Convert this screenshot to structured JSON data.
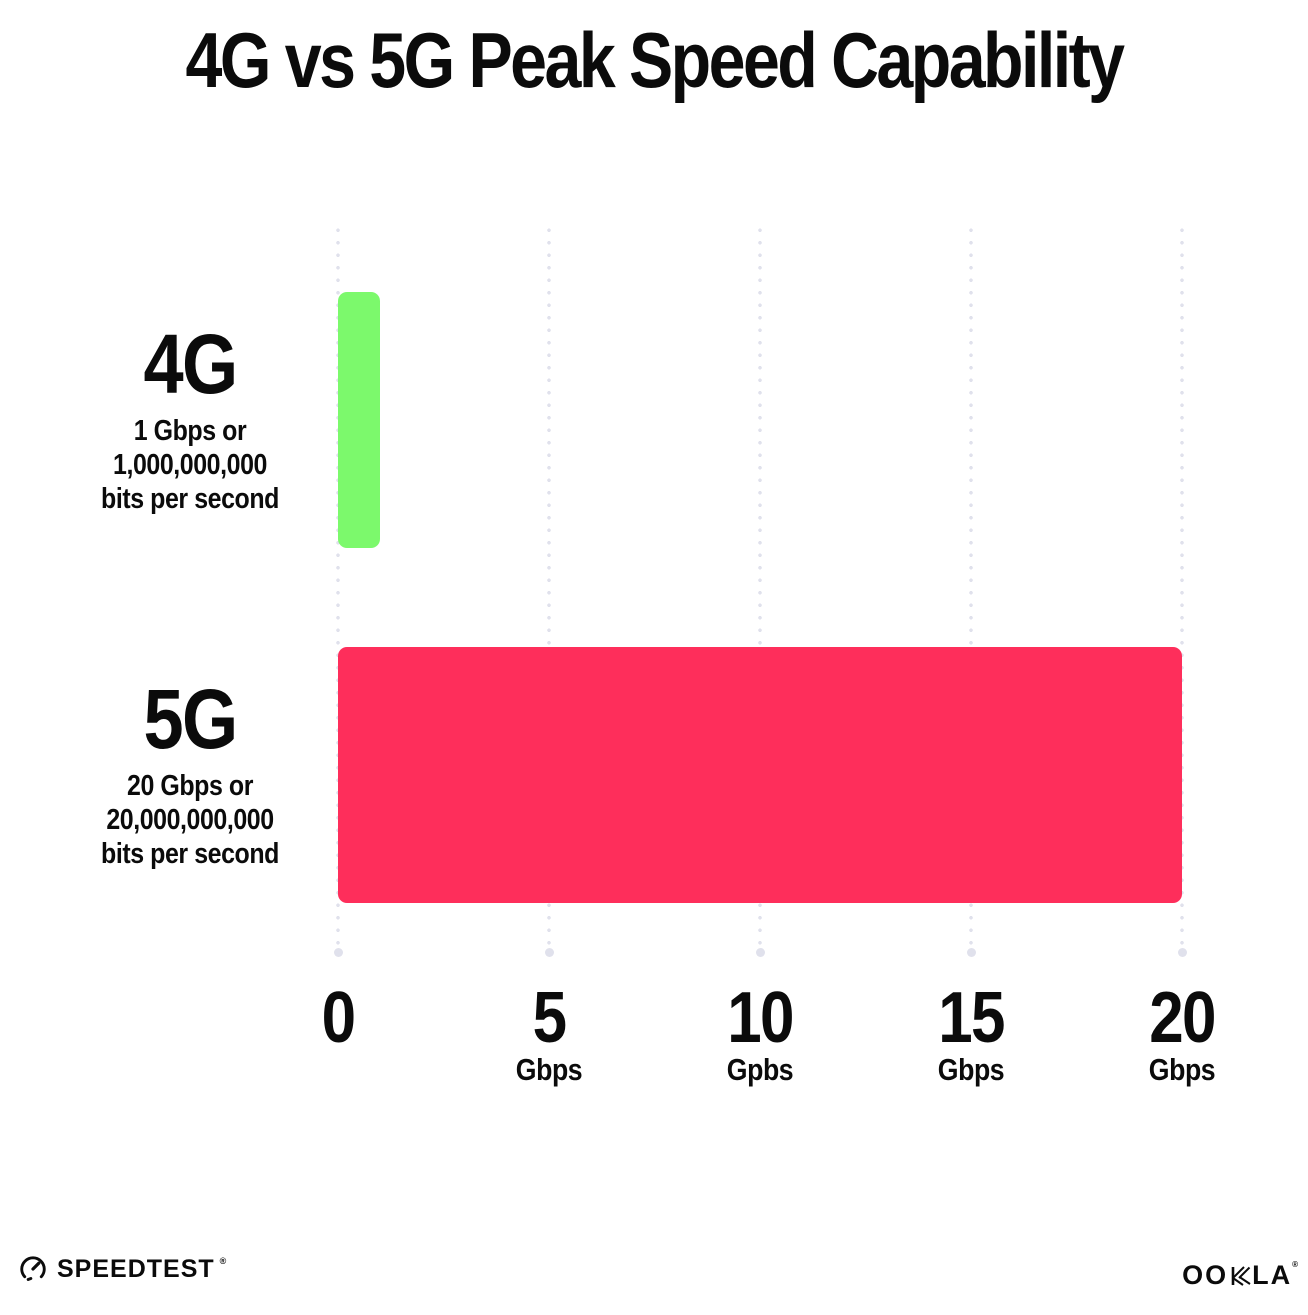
{
  "title": "4G vs 5G Peak Speed Capability",
  "chart_data": {
    "type": "bar",
    "orientation": "horizontal",
    "title": "4G vs 5G Peak Speed Capability",
    "categories": [
      "4G",
      "5G"
    ],
    "values": [
      1,
      20
    ],
    "xlim": [
      0,
      20
    ],
    "grid": "dotted-vertical",
    "bar_colors": [
      "#7cf96c",
      "#fe2e5b"
    ],
    "row_labels": [
      {
        "name": "4G",
        "lines": [
          "1 Gbps or",
          "1,000,000,000",
          "bits per second"
        ]
      },
      {
        "name": "5G",
        "lines": [
          "20 Gbps or",
          "20,000,000,000",
          "bits per second"
        ]
      }
    ],
    "x_ticks": [
      {
        "value": 0,
        "label": "0",
        "unit": ""
      },
      {
        "value": 5,
        "label": "5",
        "unit": "Gbps"
      },
      {
        "value": 10,
        "label": "10",
        "unit": "Gpbs"
      },
      {
        "value": 15,
        "label": "15",
        "unit": "Gbps"
      },
      {
        "value": 20,
        "label": "20",
        "unit": "Gbps"
      }
    ]
  },
  "colors": {
    "bar_4g_green": "#7cf96c",
    "bar_5g_red": "#fe2e5b",
    "gridline_dot": "#e0e1ec",
    "text": "#0b0b0b",
    "background": "#ffffff"
  },
  "footer": {
    "speedtest_label": "SPEEDTEST",
    "speedtest_mark": "®",
    "ookla_oo": "OO",
    "ookla_la": "LA",
    "ookla_mark": "®"
  }
}
